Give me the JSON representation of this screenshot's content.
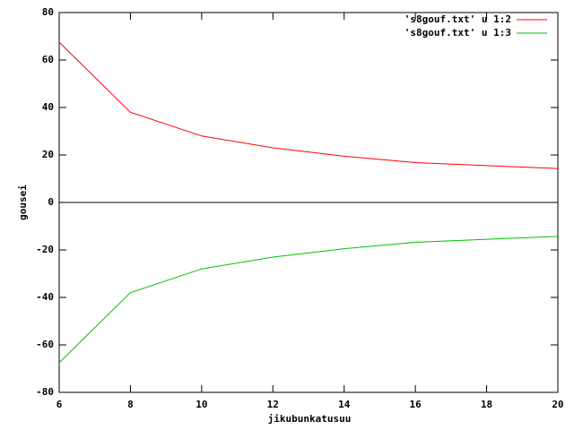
{
  "chart_data": {
    "type": "line",
    "x": [
      6,
      8,
      10,
      12,
      14,
      16,
      18,
      20
    ],
    "series": [
      {
        "name": "'s8gouf.txt' u 1:2",
        "color": "#ff0000",
        "values": [
          67.5,
          38,
          28,
          23,
          19.5,
          16.8,
          15.5,
          14.3
        ]
      },
      {
        "name": "'s8gouf.txt' u 1:3",
        "color": "#00c000",
        "values": [
          -67.5,
          -38,
          -28,
          -23,
          -19.5,
          -16.8,
          -15.5,
          -14.3
        ]
      }
    ],
    "xlabel": "jikubunkatusuu",
    "ylabel": "gousei",
    "xlim": [
      6,
      20
    ],
    "xticks": [
      6,
      8,
      10,
      12,
      14,
      16,
      18,
      20
    ],
    "ylim": [
      -80,
      80
    ],
    "yticks": [
      -80,
      -60,
      -40,
      -20,
      0,
      20,
      40,
      60,
      80
    ],
    "zero_axis": true,
    "legend": "top-right"
  }
}
